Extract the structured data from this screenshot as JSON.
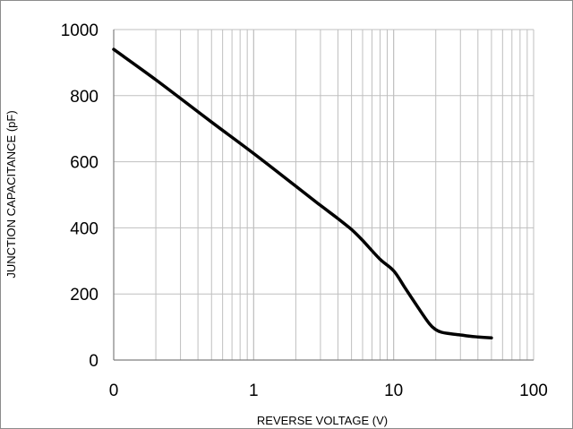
{
  "chart_data": {
    "type": "line",
    "xlabel": "REVERSE VOLTAGE (V)",
    "ylabel": "JUNCTION CAPACITANCE (pF)",
    "x_scale": "log",
    "x_tick_labels": [
      "0",
      "1",
      "10",
      "100"
    ],
    "y_tick_labels": [
      "0",
      "200",
      "400",
      "600",
      "800",
      "1000"
    ],
    "xlim": [
      0.1,
      100
    ],
    "ylim": [
      0,
      1000
    ],
    "grid": true,
    "legend": "none",
    "line_color": "#000000",
    "series": [
      {
        "x": [
          0.1,
          0.2,
          0.5,
          1,
          2,
          3,
          4,
          5,
          6,
          8,
          10,
          12,
          15,
          18,
          20,
          22,
          25,
          30,
          35,
          40,
          50
        ],
        "y": [
          940,
          848,
          720,
          625,
          526,
          468,
          428,
          395,
          362,
          305,
          270,
          220,
          158,
          110,
          92,
          84,
          80,
          76,
          72,
          70,
          67
        ]
      }
    ]
  }
}
